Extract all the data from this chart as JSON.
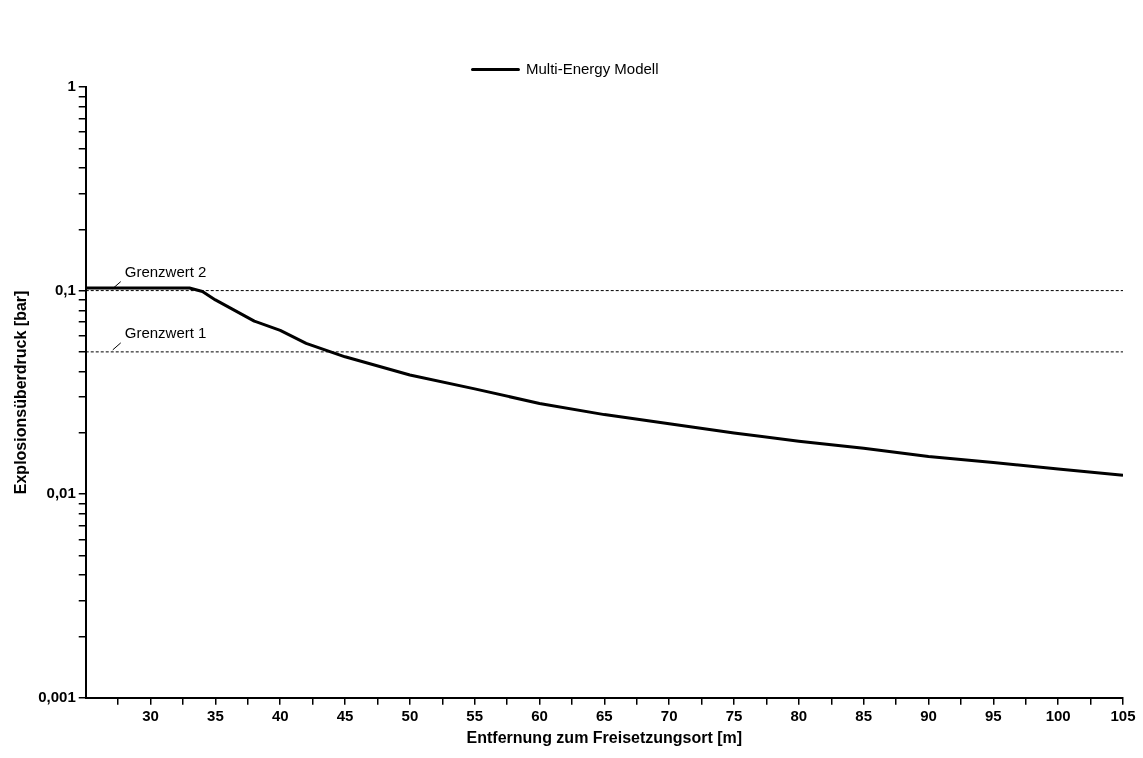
{
  "chart_data": {
    "type": "line",
    "xlabel": "Entfernung zum Freisetzungsort [m]",
    "ylabel": "Explosionsüberdruck [bar]",
    "x": [
      25,
      33,
      34,
      35,
      38,
      40,
      42,
      45,
      50,
      55,
      60,
      65,
      70,
      75,
      80,
      85,
      90,
      95,
      100,
      105
    ],
    "series": [
      {
        "name": "Multi-Energy Modell",
        "color": "#000000",
        "values": [
          0.103,
          0.103,
          0.099,
          0.09,
          0.0708,
          0.0638,
          0.0551,
          0.0473,
          0.0385,
          0.0329,
          0.0279,
          0.0246,
          0.0222,
          0.02,
          0.0182,
          0.0168,
          0.0153,
          0.0143,
          0.0133,
          0.0124
        ]
      }
    ],
    "log": "y",
    "xlim": [
      25,
      105
    ],
    "ylim": [
      0.001,
      1
    ],
    "xticks": [
      {
        "value": 27.5,
        "label": null
      },
      30,
      {
        "value": 32.5,
        "label": null
      },
      35,
      {
        "value": 37.5,
        "label": null
      },
      40,
      {
        "value": 42.5,
        "label": null
      },
      45,
      {
        "value": 47.5,
        "label": null
      },
      50,
      {
        "value": 52.5,
        "label": null
      },
      55,
      {
        "value": 57.5,
        "label": null
      },
      60,
      {
        "value": 62.5,
        "label": null
      },
      65,
      {
        "value": 67.5,
        "label": null
      },
      70,
      {
        "value": 72.5,
        "label": null
      },
      75,
      {
        "value": 77.5,
        "label": null
      },
      80,
      {
        "value": 82.5,
        "label": null
      },
      85,
      {
        "value": 87.5,
        "label": null
      },
      90,
      {
        "value": 92.5,
        "label": null
      },
      95,
      {
        "value": 97.5,
        "label": null
      },
      100,
      {
        "value": 102.5,
        "label": null
      },
      105
    ],
    "yticks": [
      {
        "value": 0.001,
        "label": "0,001"
      },
      {
        "value": 0.002,
        "label": null
      },
      {
        "value": 0.003,
        "label": null
      },
      {
        "value": 0.004,
        "label": null
      },
      {
        "value": 0.005,
        "label": null
      },
      {
        "value": 0.006,
        "label": null
      },
      {
        "value": 0.007,
        "label": null
      },
      {
        "value": 0.008,
        "label": null
      },
      {
        "value": 0.009,
        "label": null
      },
      {
        "value": 0.01,
        "label": "0,01"
      },
      {
        "value": 0.02,
        "label": null
      },
      {
        "value": 0.03,
        "label": null
      },
      {
        "value": 0.04,
        "label": null
      },
      {
        "value": 0.05,
        "label": null
      },
      {
        "value": 0.06,
        "label": null
      },
      {
        "value": 0.07,
        "label": null
      },
      {
        "value": 0.08,
        "label": null
      },
      {
        "value": 0.09,
        "label": null
      },
      {
        "value": 0.1,
        "label": "0,1"
      },
      {
        "value": 0.2,
        "label": null
      },
      {
        "value": 0.3,
        "label": null
      },
      {
        "value": 0.4,
        "label": null
      },
      {
        "value": 0.5,
        "label": null
      },
      {
        "value": 0.6,
        "label": null
      },
      {
        "value": 0.7,
        "label": null
      },
      {
        "value": 0.8,
        "label": null
      },
      {
        "value": 0.9,
        "label": null
      },
      1
    ],
    "ref_lines": [
      {
        "axis": "y",
        "value": 0.1,
        "label": "Grenzwert 2",
        "line_style": "dashed"
      },
      {
        "axis": "y",
        "value": 0.05,
        "label": "Grenzwert 1",
        "line_style": "dashed"
      }
    ],
    "grid": false,
    "legend": "top",
    "marker": "none",
    "line_style": "solid"
  }
}
